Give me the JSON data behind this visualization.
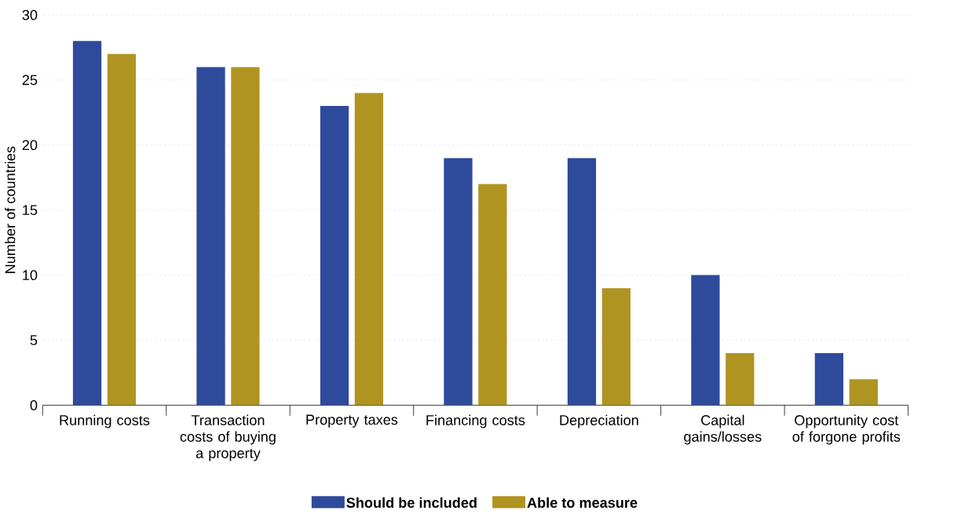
{
  "chart_data": {
    "type": "bar",
    "ylabel": "Number of countries",
    "categories": [
      "Running costs",
      "Transaction costs of buying a property",
      "Property taxes",
      "Financing costs",
      "Depreciation",
      "Capital gains/losses",
      "Opportunity cost of forgone profits"
    ],
    "series": [
      {
        "name": "Should be included",
        "color": "#2e4a9a",
        "values": [
          28,
          26,
          23,
          19,
          19,
          10,
          4
        ]
      },
      {
        "name": "Able to measure",
        "color": "#b09422",
        "values": [
          27,
          26,
          24,
          17,
          9,
          4,
          2
        ]
      }
    ],
    "ylim": [
      0,
      30
    ],
    "yticks": [
      0,
      5,
      10,
      15,
      20,
      25,
      30
    ],
    "grid": "y",
    "legend": "bottom"
  }
}
